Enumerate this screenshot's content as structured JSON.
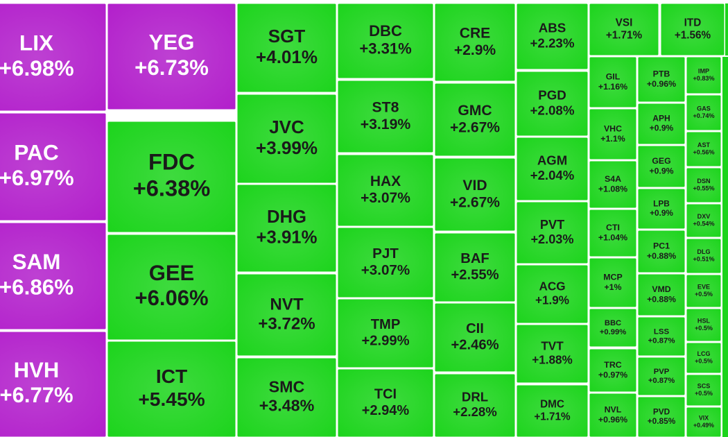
{
  "chart_data": {
    "type": "treemap",
    "categories": [
      "LIX",
      "PAC",
      "SAM",
      "HVH",
      "YEG",
      "FDC",
      "GEE",
      "ICT",
      "SGT",
      "JVC",
      "DHG",
      "NVT",
      "SMC",
      "DBC",
      "ST8",
      "HAX",
      "PJT",
      "TMP",
      "TCI",
      "CRE",
      "GMC",
      "VID",
      "BAF",
      "CII",
      "DRL",
      "ABS",
      "PGD",
      "AGM",
      "PVT",
      "ACG",
      "TVT",
      "DMC",
      "VSI",
      "ITD",
      "GIL",
      "VHC",
      "S4A",
      "CTI",
      "MCP",
      "BBC",
      "TRC",
      "NVL",
      "PTB",
      "APH",
      "GEG",
      "LPB",
      "PC1",
      "VMD",
      "LSS",
      "PVP",
      "PVD",
      "IMP",
      "GAS",
      "AST",
      "DSN",
      "DXV",
      "DLG",
      "EVE",
      "HSL",
      "LCG",
      "SCS",
      "VIX"
    ],
    "values": [
      6.98,
      6.97,
      6.86,
      6.77,
      6.73,
      6.38,
      6.06,
      5.45,
      4.01,
      3.99,
      3.91,
      3.72,
      3.48,
      3.31,
      3.19,
      3.07,
      3.07,
      2.99,
      2.94,
      2.9,
      2.67,
      2.67,
      2.55,
      2.46,
      2.28,
      2.23,
      2.08,
      2.04,
      2.03,
      1.9,
      1.88,
      1.71,
      1.71,
      1.56,
      1.16,
      1.1,
      1.08,
      1.04,
      1,
      0.99,
      0.97,
      0.96,
      0.96,
      0.9,
      0.9,
      0.9,
      0.88,
      0.88,
      0.87,
      0.87,
      0.85,
      0.83,
      0.74,
      0.56,
      0.55,
      0.54,
      0.51,
      0.5,
      0.5,
      0.5,
      0.5,
      0.49
    ],
    "value_labels": [
      "+6.98%",
      "+6.97%",
      "+6.86%",
      "+6.77%",
      "+6.73%",
      "+6.38%",
      "+6.06%",
      "+5.45%",
      "+4.01%",
      "+3.99%",
      "+3.91%",
      "+3.72%",
      "+3.48%",
      "+3.31%",
      "+3.19%",
      "+3.07%",
      "+3.07%",
      "+2.99%",
      "+2.94%",
      "+2.9%",
      "+2.67%",
      "+2.67%",
      "+2.55%",
      "+2.46%",
      "+2.28%",
      "+2.23%",
      "+2.08%",
      "+2.04%",
      "+2.03%",
      "+1.9%",
      "+1.88%",
      "+1.71%",
      "+1.71%",
      "+1.56%",
      "+1.16%",
      "+1.1%",
      "+1.08%",
      "+1.04%",
      "+1%",
      "+0.99%",
      "+0.97%",
      "+0.96%",
      "+0.96%",
      "+0.9%",
      "+0.9%",
      "+0.9%",
      "+0.88%",
      "+0.88%",
      "+0.87%",
      "+0.87%",
      "+0.85%",
      "+0.83%",
      "+0.74%",
      "+0.56%",
      "+0.55%",
      "+0.54%",
      "+0.51%",
      "+0.5%",
      "+0.5%",
      "+0.5%",
      "+0.5%",
      "+0.49%"
    ],
    "colors": [
      "#b21fcb",
      "#b21fcb",
      "#b21fcb",
      "#b21fcb",
      "#b21fcb",
      "#1cd41c",
      "#1cd41c",
      "#1cd41c",
      "#1cd41c",
      "#1cd41c",
      "#1cd41c",
      "#1cd41c",
      "#1cd41c",
      "#1cd41c",
      "#1cd41c",
      "#1cd41c",
      "#1cd41c",
      "#1cd41c",
      "#1cd41c",
      "#1cd41c",
      "#1cd41c",
      "#1cd41c",
      "#1cd41c",
      "#1cd41c",
      "#1cd41c",
      "#1cd41c",
      "#1cd41c",
      "#1cd41c",
      "#1cd41c",
      "#1cd41c",
      "#1cd41c",
      "#1cd41c",
      "#1cd41c",
      "#1cd41c",
      "#1cd41c",
      "#1cd41c",
      "#1cd41c",
      "#1cd41c",
      "#1cd41c",
      "#1cd41c",
      "#1cd41c",
      "#1cd41c",
      "#1cd41c",
      "#1cd41c",
      "#1cd41c",
      "#1cd41c",
      "#1cd41c",
      "#1cd41c",
      "#1cd41c",
      "#1cd41c",
      "#1cd41c",
      "#1cd41c",
      "#1cd41c",
      "#1cd41c",
      "#1cd41c",
      "#1cd41c",
      "#1cd41c",
      "#1cd41c",
      "#1cd41c",
      "#1cd41c",
      "#1cd41c",
      "#1cd41c"
    ]
  }
}
